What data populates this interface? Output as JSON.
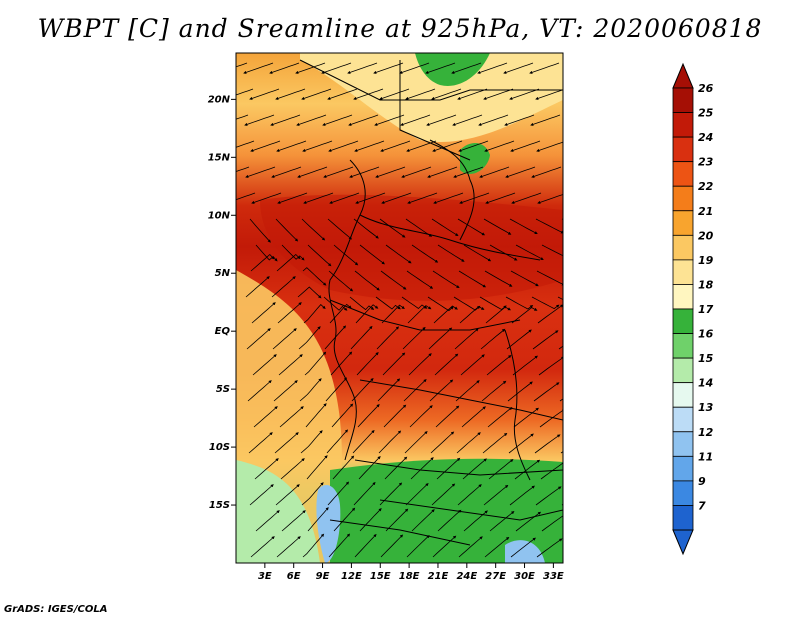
{
  "title": "WBPT [C] and Sreamline at 925hPa, VT: 2020060818",
  "credit": "GrADS: IGES/COLA",
  "map": {
    "lon_range": [
      0,
      34
    ],
    "lat_range": [
      -20,
      24
    ],
    "lat_ticks": [
      {
        "value": 20,
        "label": "20N"
      },
      {
        "value": 15,
        "label": "15N"
      },
      {
        "value": 10,
        "label": "10N"
      },
      {
        "value": 5,
        "label": "5N"
      },
      {
        "value": 0,
        "label": "EQ"
      },
      {
        "value": -5,
        "label": "5S"
      },
      {
        "value": -10,
        "label": "10S"
      },
      {
        "value": -15,
        "label": "15S"
      }
    ],
    "lon_ticks": [
      {
        "value": 3,
        "label": "3E"
      },
      {
        "value": 6,
        "label": "6E"
      },
      {
        "value": 9,
        "label": "9E"
      },
      {
        "value": 12,
        "label": "12E"
      },
      {
        "value": 15,
        "label": "15E"
      },
      {
        "value": 18,
        "label": "18E"
      },
      {
        "value": 21,
        "label": "21E"
      },
      {
        "value": 24,
        "label": "24E"
      },
      {
        "value": 27,
        "label": "27E"
      },
      {
        "value": 30,
        "label": "30E"
      },
      {
        "value": 33,
        "label": "33E"
      }
    ]
  },
  "colorbar": {
    "levels": [
      {
        "label": "26",
        "color": "#a50f05"
      },
      {
        "label": "25",
        "color": "#c21a08"
      },
      {
        "label": "24",
        "color": "#d93010"
      },
      {
        "label": "23",
        "color": "#ed5414"
      },
      {
        "label": "22",
        "color": "#f47d1a"
      },
      {
        "label": "21",
        "color": "#f8a42e"
      },
      {
        "label": "20",
        "color": "#fbc862"
      },
      {
        "label": "19",
        "color": "#fde394"
      },
      {
        "label": "18",
        "color": "#fff6c0"
      },
      {
        "label": "17",
        "color": "#36b23a"
      },
      {
        "label": "16",
        "color": "#6fd16a"
      },
      {
        "label": "15",
        "color": "#b4ebaa"
      },
      {
        "label": "14",
        "color": "#e6f9ef"
      },
      {
        "label": "13",
        "color": "#bcdcf6"
      },
      {
        "label": "12",
        "color": "#90c3f0"
      },
      {
        "label": "11",
        "color": "#62a6ea"
      },
      {
        "label": "9",
        "color": "#3b88e2"
      },
      {
        "label": "7",
        "color": "#1e63cf"
      }
    ],
    "top_triangle_color": "#a50f05",
    "bottom_triangle_color": "#1e63cf"
  }
}
